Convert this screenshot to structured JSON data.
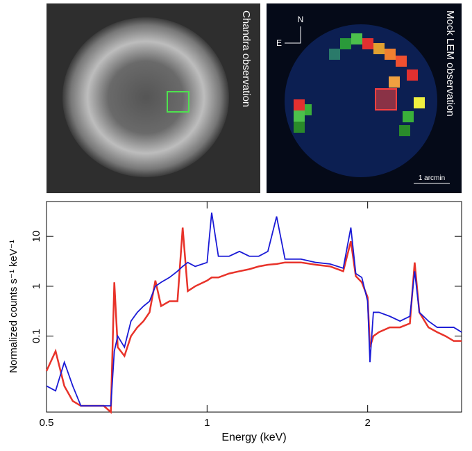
{
  "images": {
    "left_label": "Chandra observation",
    "right_label": "Mock LEM observation",
    "north": "N",
    "east": "E",
    "scale_label": "1 arcmin"
  },
  "chart_data": {
    "type": "line",
    "x_label": "Energy (keV)",
    "y_label": "Normalized counts s⁻¹ keV⁻¹",
    "x": [
      0.5,
      0.52,
      0.54,
      0.56,
      0.58,
      0.62,
      0.64,
      0.66,
      0.67,
      0.68,
      0.7,
      0.72,
      0.74,
      0.76,
      0.78,
      0.8,
      0.82,
      0.85,
      0.88,
      0.9,
      0.92,
      0.95,
      1.0,
      1.02,
      1.05,
      1.1,
      1.15,
      1.2,
      1.25,
      1.3,
      1.35,
      1.4,
      1.5,
      1.6,
      1.7,
      1.8,
      1.86,
      1.9,
      1.95,
      2.0,
      2.02,
      2.05,
      2.1,
      2.2,
      2.3,
      2.4,
      2.45,
      2.5,
      2.6,
      2.7,
      2.8,
      2.9,
      3.0
    ],
    "series": [
      {
        "color": "#e8332a",
        "values": [
          0.02,
          0.05,
          0.01,
          0.005,
          0.004,
          0.004,
          0.004,
          0.003,
          1.2,
          0.06,
          0.04,
          0.1,
          0.15,
          0.2,
          0.3,
          1.3,
          0.4,
          0.5,
          0.5,
          15,
          0.8,
          1.0,
          1.3,
          1.5,
          1.5,
          1.8,
          2.0,
          2.2,
          2.5,
          2.7,
          2.8,
          3,
          3,
          2.7,
          2.5,
          2,
          8,
          1.6,
          1.2,
          0.6,
          0.06,
          0.1,
          0.12,
          0.15,
          0.15,
          0.18,
          3,
          0.3,
          0.15,
          0.12,
          0.1,
          0.08,
          0.08
        ]
      },
      {
        "color": "#1a1ad6",
        "values": [
          0.01,
          0.008,
          0.03,
          0.01,
          0.004,
          0.004,
          0.004,
          0.004,
          0.05,
          0.1,
          0.06,
          0.2,
          0.3,
          0.4,
          0.5,
          1.0,
          1.2,
          1.5,
          2,
          2.5,
          3,
          2.5,
          3,
          30,
          4,
          4,
          5,
          4,
          4,
          5,
          25,
          3.5,
          3.5,
          3,
          2.8,
          2.3,
          15,
          1.8,
          1.5,
          0.5,
          0.03,
          0.3,
          0.3,
          0.25,
          0.2,
          0.25,
          2,
          0.3,
          0.2,
          0.15,
          0.15,
          0.15,
          0.12
        ]
      }
    ],
    "xlim": [
      0.5,
      3
    ],
    "ylim": [
      0.003,
      50
    ],
    "xlog": true,
    "ylog": true,
    "xticks": [
      0.5,
      1,
      2
    ],
    "yticks": [
      0.1,
      1,
      10
    ]
  }
}
